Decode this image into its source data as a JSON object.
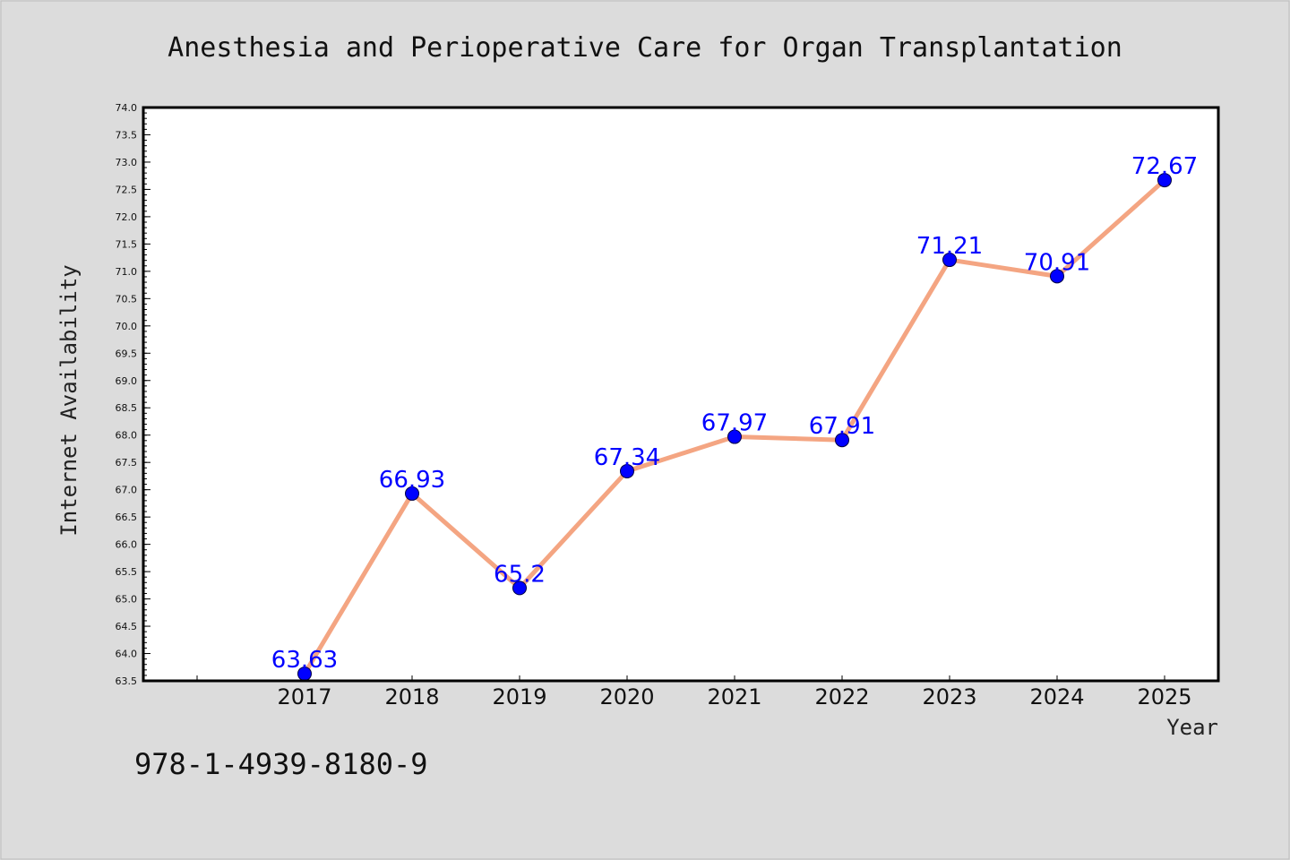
{
  "chart_data": {
    "type": "line",
    "title": "Anesthesia and Perioperative Care for Organ Transplantation",
    "xlabel": "Year",
    "ylabel": "Internet Availability",
    "categories": [
      "2017",
      "2018",
      "2019",
      "2020",
      "2021",
      "2022",
      "2023",
      "2024",
      "2025"
    ],
    "series": [
      {
        "values": [
          63.63,
          66.93,
          65.2,
          67.34,
          67.97,
          67.91,
          71.21,
          70.91,
          72.67
        ],
        "labels": [
          "63.63",
          "66.93",
          "65.2",
          "67.34",
          "67.97",
          "67.91",
          "71.21",
          "70.91",
          "72.67"
        ]
      }
    ],
    "ylim": [
      63.5,
      74.0
    ],
    "yticks": [
      "63.5",
      "64.0",
      "64.5",
      "65.0",
      "65.5",
      "66.0",
      "66.5",
      "67.0",
      "67.5",
      "68.0",
      "68.5",
      "69.0",
      "69.5",
      "70.0",
      "70.5",
      "71.0",
      "71.5",
      "72.0",
      "72.5",
      "73.0",
      "73.5",
      "74.0"
    ],
    "grid": false,
    "colors": {
      "line": "#f4a582",
      "marker": "#0000ff",
      "label": "#0000ff",
      "background": "#dcdcdc",
      "plot_background": "#ffffff"
    }
  },
  "footer": {
    "isbn": "978-1-4939-8180-9"
  }
}
